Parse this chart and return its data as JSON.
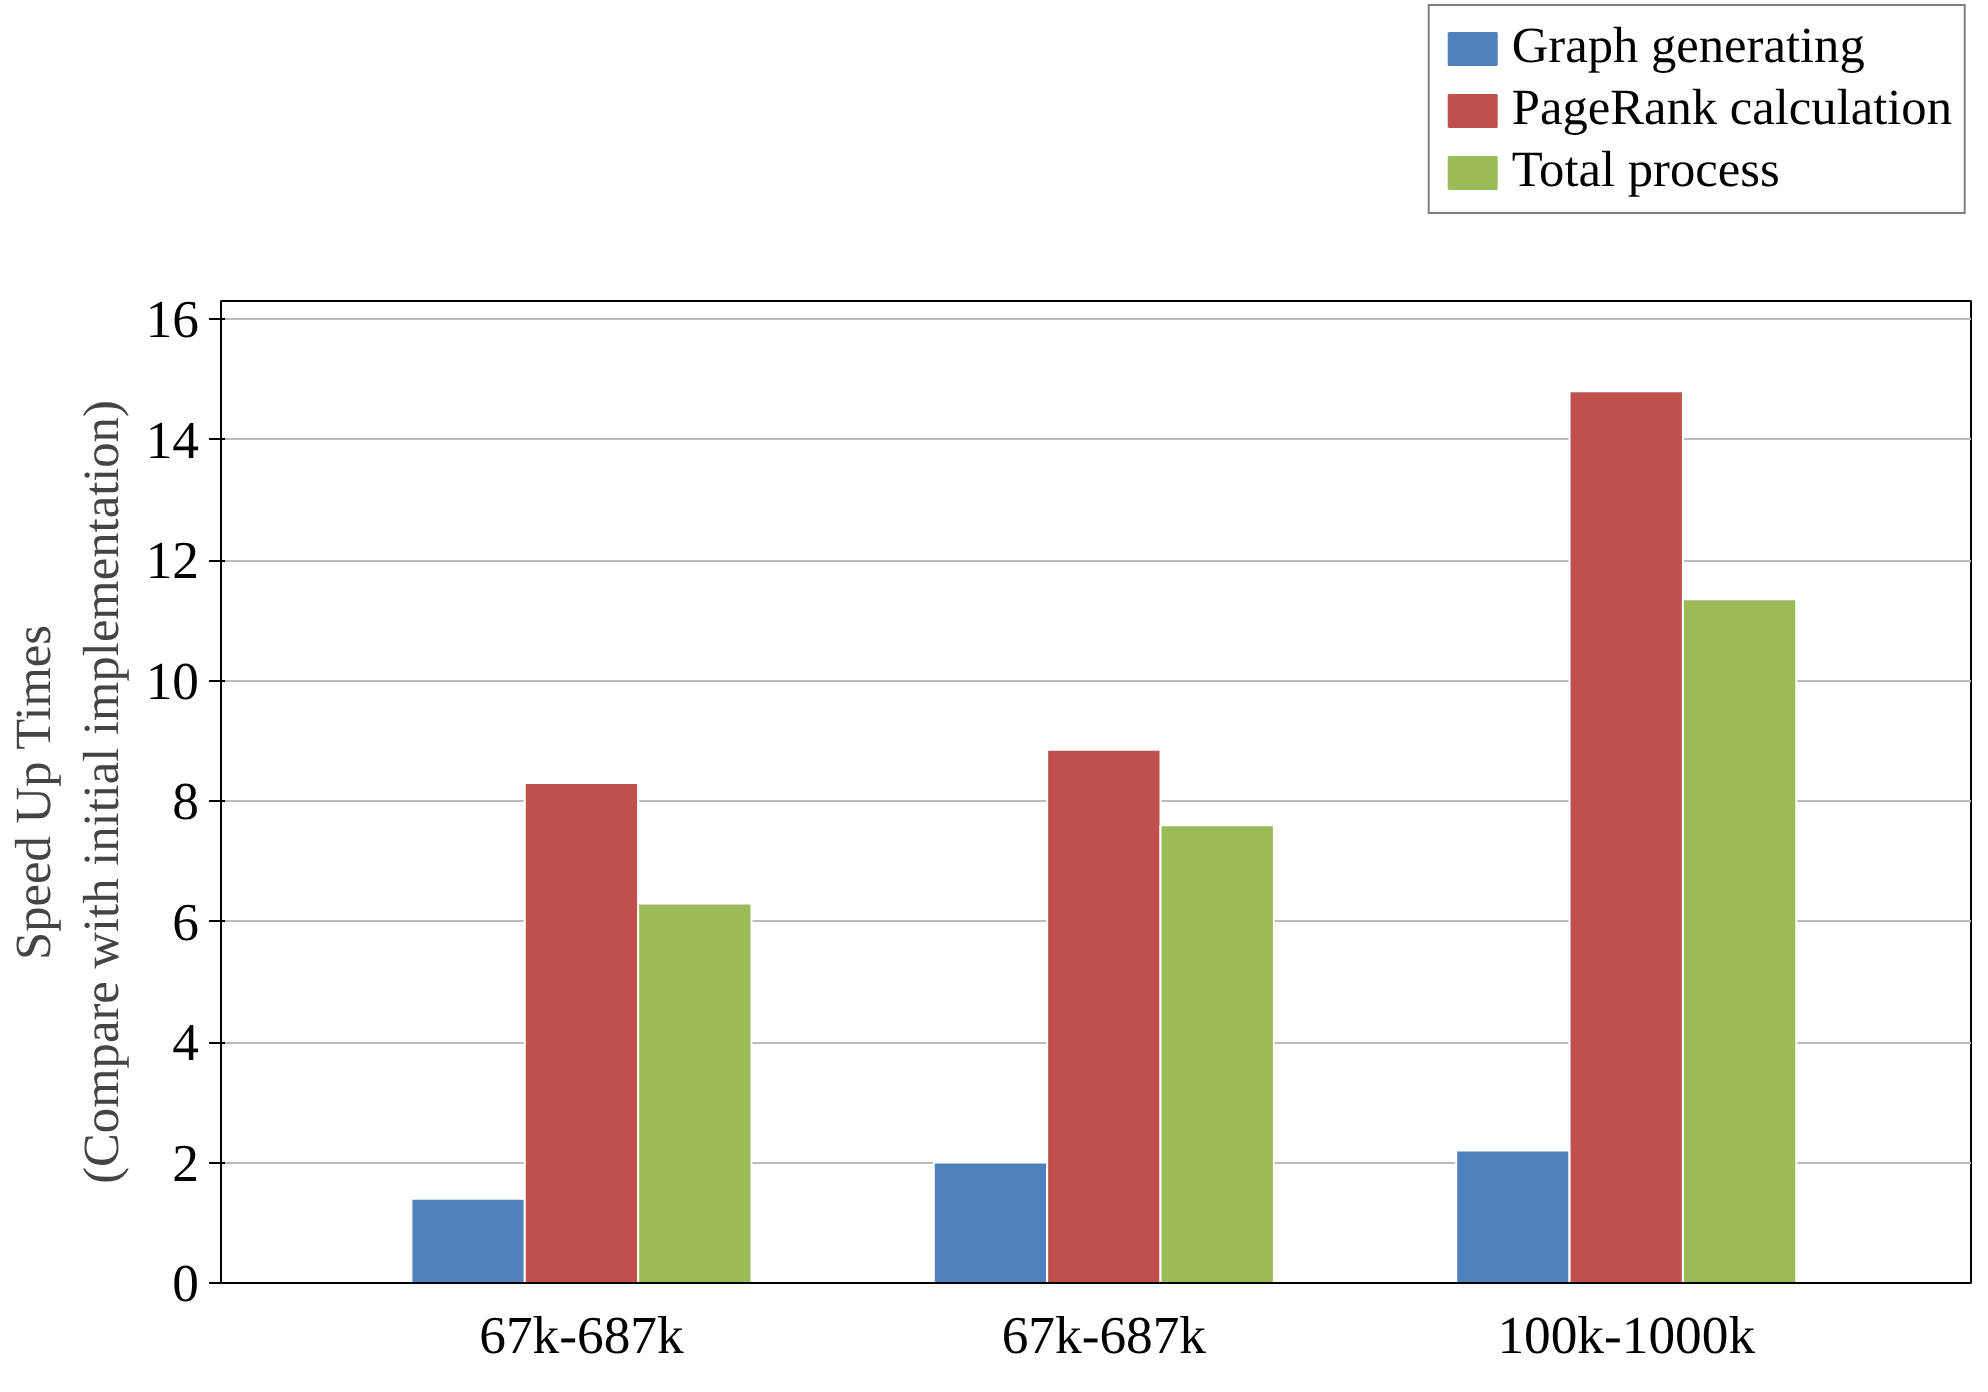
{
  "chart_data": {
    "type": "bar",
    "categories": [
      "67k-687k",
      "67k-687k",
      "100k-1000k"
    ],
    "ylabel": "Speed Up Times\n(Compare with initial implementation)",
    "series": [
      {
        "name": "Graph generating",
        "color": "#4f81bd",
        "values": [
          1.4,
          2.0,
          2.2
        ]
      },
      {
        "name": "PageRank calculation",
        "color": "#c0504d",
        "values": [
          8.3,
          8.85,
          14.8
        ]
      },
      {
        "name": "Total process",
        "color": "#9bbb59",
        "values": [
          6.3,
          7.6,
          11.35
        ]
      }
    ],
    "ylim": [
      0,
      16.3
    ],
    "yticks": [
      0,
      2,
      4,
      6,
      8,
      10,
      12,
      14,
      16
    ],
    "grid": "y",
    "legend": "top right"
  }
}
